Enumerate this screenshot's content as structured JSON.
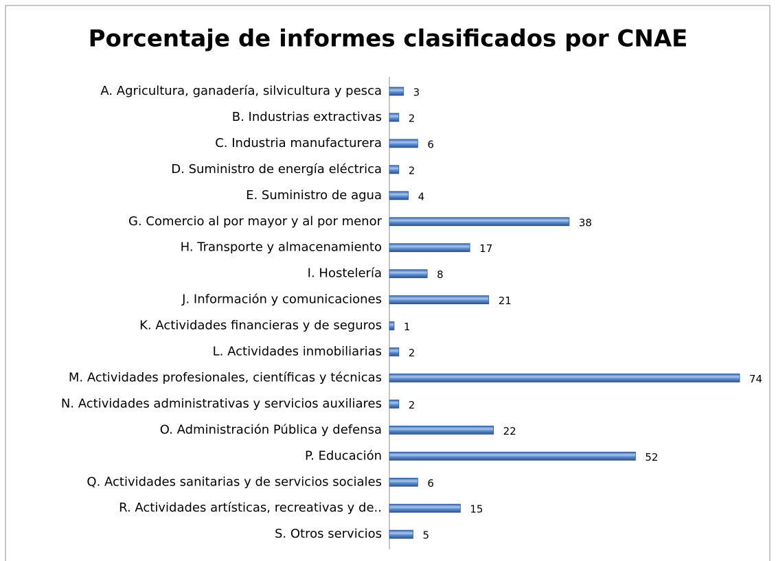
{
  "chart_data": {
    "type": "hbar",
    "title": "Porcentaje de informes clasificados por CNAE",
    "categories": [
      "A. Agricultura, ganadería, silvicultura y pesca",
      "B. Industrias extractivas",
      "C. Industria manufacturera",
      "D. Suministro de energía eléctrica",
      "E. Suministro de agua",
      "G. Comercio al por mayor y al por menor",
      "H. Transporte y almacenamiento",
      "I. Hostelería",
      "J. Información y comunicaciones",
      "K. Actividades financieras y de seguros",
      "L. Actividades inmobiliarias",
      "M. Actividades profesionales, científicas y técnicas",
      "N. Actividades administrativas y servicios auxiliares",
      "O. Administración Pública y defensa",
      "P. Educación",
      "Q. Actividades sanitarias y de servicios sociales",
      "R. Actividades artísticas, recreativas y de..",
      "S. Otros servicios"
    ],
    "values": [
      3,
      2,
      6,
      2,
      4,
      38,
      17,
      8,
      21,
      1,
      2,
      74,
      2,
      22,
      52,
      6,
      15,
      5
    ],
    "color": "#4f81bd"
  }
}
